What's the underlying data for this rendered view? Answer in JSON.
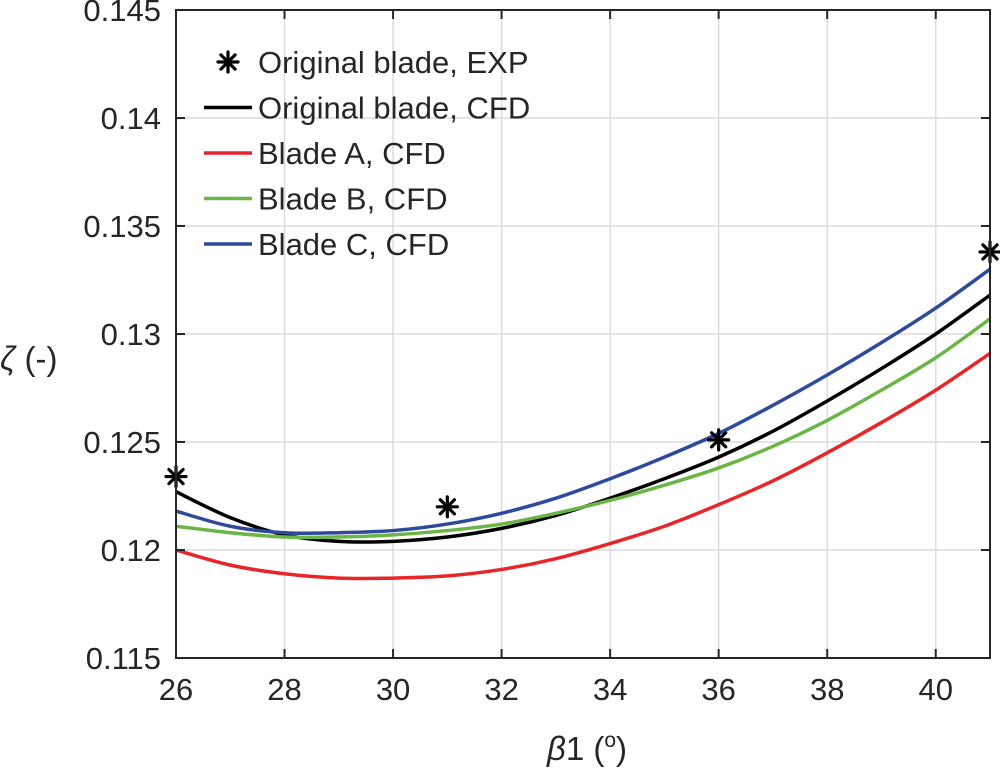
{
  "chart_data": {
    "type": "line",
    "title": "",
    "xlabel": "β1 (°)",
    "xlabel_parts": {
      "symbol": "β",
      "rest": "1 (",
      "degree": "o",
      "close": ")"
    },
    "ylabel": "ζ (-)",
    "ylabel_parts": {
      "symbol": "ζ",
      "rest": " (-)"
    },
    "xlim": [
      26,
      41
    ],
    "ylim": [
      0.115,
      0.145
    ],
    "xticks": [
      26,
      28,
      30,
      32,
      34,
      36,
      38,
      40
    ],
    "xtick_labels": [
      "26",
      "28",
      "30",
      "32",
      "34",
      "36",
      "38",
      "40"
    ],
    "yticks": [
      0.115,
      0.12,
      0.125,
      0.13,
      0.135,
      0.14,
      0.145
    ],
    "ytick_labels": [
      "0.115",
      "0.12",
      "0.125",
      "0.13",
      "0.135",
      "0.14",
      "0.145"
    ],
    "grid": true,
    "legend_position": "top-left",
    "series": [
      {
        "name": "Original blade, EXP",
        "kind": "marker",
        "marker": "asterisk",
        "color": "#000000",
        "x": [
          26,
          31,
          36,
          41
        ],
        "y": [
          0.1234,
          0.122,
          0.1251,
          0.1338
        ]
      },
      {
        "name": "Original blade, CFD",
        "kind": "line",
        "color": "#000000",
        "x": [
          26,
          27,
          28,
          29,
          30,
          31,
          32,
          33,
          34,
          35,
          36,
          37,
          38,
          39,
          40,
          41
        ],
        "y": [
          0.1227,
          0.1215,
          0.1207,
          0.1204,
          0.1204,
          0.1206,
          0.121,
          0.1216,
          0.1224,
          0.1233,
          0.1243,
          0.1255,
          0.1269,
          0.1284,
          0.13,
          0.1318
        ]
      },
      {
        "name": "Blade A, CFD",
        "kind": "line",
        "color": "#e8262a",
        "x": [
          26,
          27,
          28,
          29,
          30,
          31,
          32,
          33,
          34,
          35,
          36,
          37,
          38,
          39,
          40,
          41
        ],
        "y": [
          0.12,
          0.1193,
          0.1189,
          0.1187,
          0.1187,
          0.1188,
          0.1191,
          0.1196,
          0.1203,
          0.1211,
          0.1221,
          0.1232,
          0.1245,
          0.1259,
          0.1274,
          0.1291
        ]
      },
      {
        "name": "Blade B, CFD",
        "kind": "line",
        "color": "#6ab545",
        "x": [
          26,
          27,
          28,
          29,
          30,
          31,
          32,
          33,
          34,
          35,
          36,
          37,
          38,
          39,
          40,
          41
        ],
        "y": [
          0.1211,
          0.1208,
          0.1206,
          0.1206,
          0.1207,
          0.1209,
          0.1212,
          0.1217,
          0.1223,
          0.123,
          0.1238,
          0.1248,
          0.126,
          0.1274,
          0.1289,
          0.1307
        ]
      },
      {
        "name": "Blade C, CFD",
        "kind": "line",
        "color": "#2e4b9b",
        "x": [
          26,
          27,
          28,
          29,
          30,
          31,
          32,
          33,
          34,
          35,
          36,
          37,
          38,
          39,
          40,
          41
        ],
        "y": [
          0.1218,
          0.1211,
          0.1208,
          0.1208,
          0.1209,
          0.1212,
          0.1217,
          0.1224,
          0.1233,
          0.1243,
          0.1254,
          0.1267,
          0.1281,
          0.1296,
          0.1312,
          0.133
        ]
      }
    ]
  }
}
